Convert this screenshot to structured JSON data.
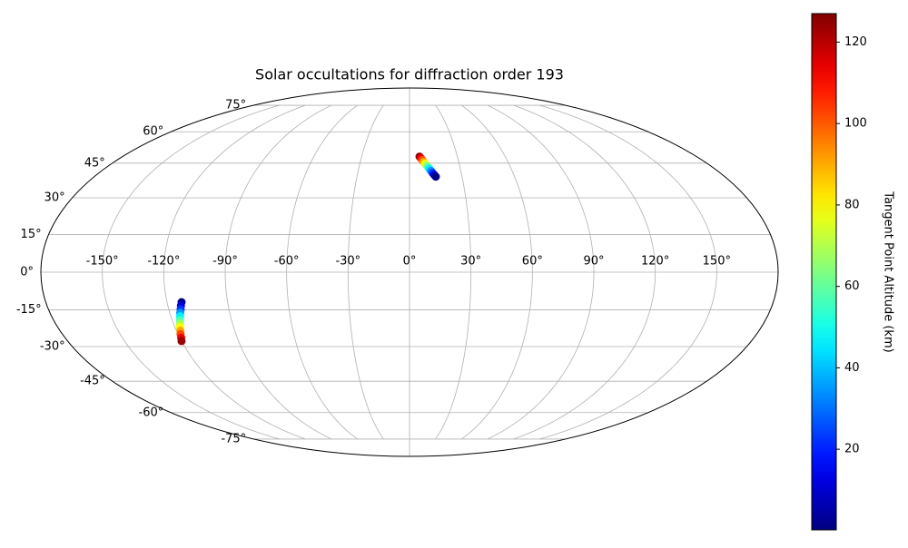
{
  "chart_data": {
    "type": "scatter",
    "projection": "mollweide",
    "title": "Solar occultations for diffraction order 193",
    "x": [
      6.3,
      7.1,
      7.9,
      8.7,
      9.5,
      10.3,
      11.1,
      11.8,
      12.6,
      13.4,
      14.2,
      15.0,
      -112.8,
      -113.5,
      -114.1,
      -114.8,
      -115.4,
      -116.1,
      -116.7,
      -117.4,
      -118.0,
      -118.7,
      -119.3,
      -120.0
    ],
    "y": [
      48.0,
      47.2,
      46.4,
      45.5,
      44.7,
      43.9,
      43.1,
      42.3,
      41.5,
      40.6,
      39.8,
      39.0,
      -11.9,
      -13.3,
      -14.8,
      -16.2,
      -17.6,
      -19.1,
      -20.5,
      -21.9,
      -23.4,
      -24.8,
      -26.3,
      -27.7
    ],
    "values": [
      124,
      113,
      101,
      90,
      79,
      67,
      56,
      45,
      34,
      22,
      11,
      1,
      1,
      12,
      23,
      35,
      46,
      57,
      68,
      79,
      90,
      102,
      113,
      124
    ],
    "colormap": "jet",
    "clim": [
      0.2,
      127
    ],
    "colorbar_label": "Tangent Point Altitude (km)",
    "colorbar_ticks": [
      20,
      40,
      60,
      80,
      100,
      120
    ],
    "xticks": [
      {
        "value": -150,
        "label": "-150°"
      },
      {
        "value": -120,
        "label": "-120°"
      },
      {
        "value": -90,
        "label": "-90°"
      },
      {
        "value": -60,
        "label": "-60°"
      },
      {
        "value": -30,
        "label": "-30°"
      },
      {
        "value": 0,
        "label": "0°"
      },
      {
        "value": 30,
        "label": "30°"
      },
      {
        "value": 60,
        "label": "60°"
      },
      {
        "value": 90,
        "label": "90°"
      },
      {
        "value": 120,
        "label": "120°"
      },
      {
        "value": 150,
        "label": "150°"
      }
    ],
    "yticks": [
      {
        "value": -75,
        "label": "-75°"
      },
      {
        "value": -60,
        "label": "-60°"
      },
      {
        "value": -45,
        "label": "-45°"
      },
      {
        "value": -30,
        "label": "-30°"
      },
      {
        "value": -15,
        "label": "-15°"
      },
      {
        "value": 0,
        "label": "0°"
      },
      {
        "value": 15,
        "label": "15°"
      },
      {
        "value": 30,
        "label": "30°"
      },
      {
        "value": 45,
        "label": "45°"
      },
      {
        "value": 60,
        "label": "60°"
      },
      {
        "value": 75,
        "label": "75°"
      }
    ],
    "grid": true
  }
}
